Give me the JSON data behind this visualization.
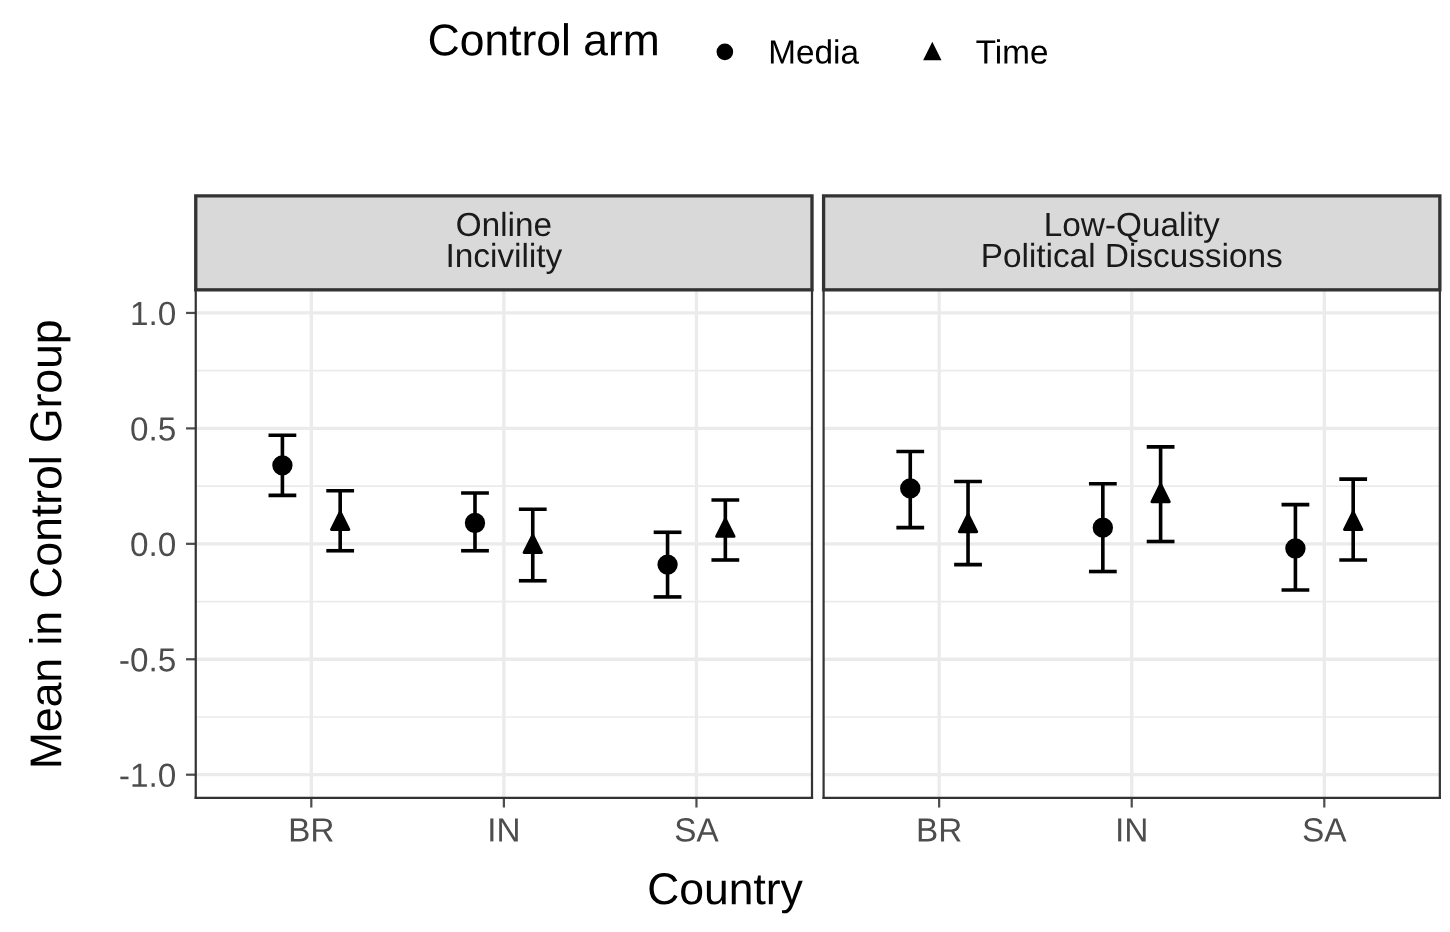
{
  "chart_data": [
    {
      "type": "scatter",
      "title": "Online\nIncivility",
      "xlabel": "Country",
      "ylabel": "Mean in Control Group",
      "legend_title": "Control arm",
      "legend": "top",
      "categories": [
        "BR",
        "IN",
        "SA"
      ],
      "ylim": [
        -1.1,
        1.1
      ],
      "yticks": [
        {
          "value": -1,
          "label": "-1.0"
        },
        {
          "value": -0.5,
          "label": "-0.5"
        },
        {
          "value": 0,
          "label": "0.0"
        },
        {
          "value": 0.5,
          "label": "0.5"
        },
        {
          "value": 1,
          "label": "1.0"
        }
      ],
      "grid": true,
      "series": [
        {
          "name": "Media",
          "color": "#000000",
          "marker": "circle",
          "values": [
            0.34,
            0.09,
            -0.09
          ],
          "errors": [
            [
              0.21,
              0.47
            ],
            [
              -0.03,
              0.22
            ],
            [
              -0.23,
              0.05
            ]
          ]
        },
        {
          "name": "Time",
          "color": "#000000",
          "marker": "triangle",
          "values": [
            0.1,
            0.0,
            0.07
          ],
          "errors": [
            [
              -0.03,
              0.23
            ],
            [
              -0.16,
              0.15
            ],
            [
              -0.07,
              0.19
            ]
          ]
        }
      ]
    },
    {
      "type": "scatter",
      "title": "Low-Quality\nPolitical Discussions",
      "tick_labels": "x",
      "categories": [
        "BR",
        "IN",
        "SA"
      ],
      "ylim": [
        -1.1,
        1.1
      ],
      "yticks": [
        -1,
        -0.5,
        0,
        0.5,
        1
      ],
      "grid": true,
      "series": [
        {
          "color": "#000000",
          "marker": "circle",
          "values": [
            0.24,
            0.07,
            -0.02
          ],
          "errors": [
            [
              0.07,
              0.4
            ],
            [
              -0.12,
              0.26
            ],
            [
              -0.2,
              0.17
            ]
          ]
        },
        {
          "color": "#000000",
          "marker": "triangle",
          "values": [
            0.09,
            0.22,
            0.1
          ],
          "errors": [
            [
              -0.09,
              0.27
            ],
            [
              0.01,
              0.42
            ],
            [
              -0.07,
              0.28
            ]
          ]
        }
      ]
    }
  ]
}
